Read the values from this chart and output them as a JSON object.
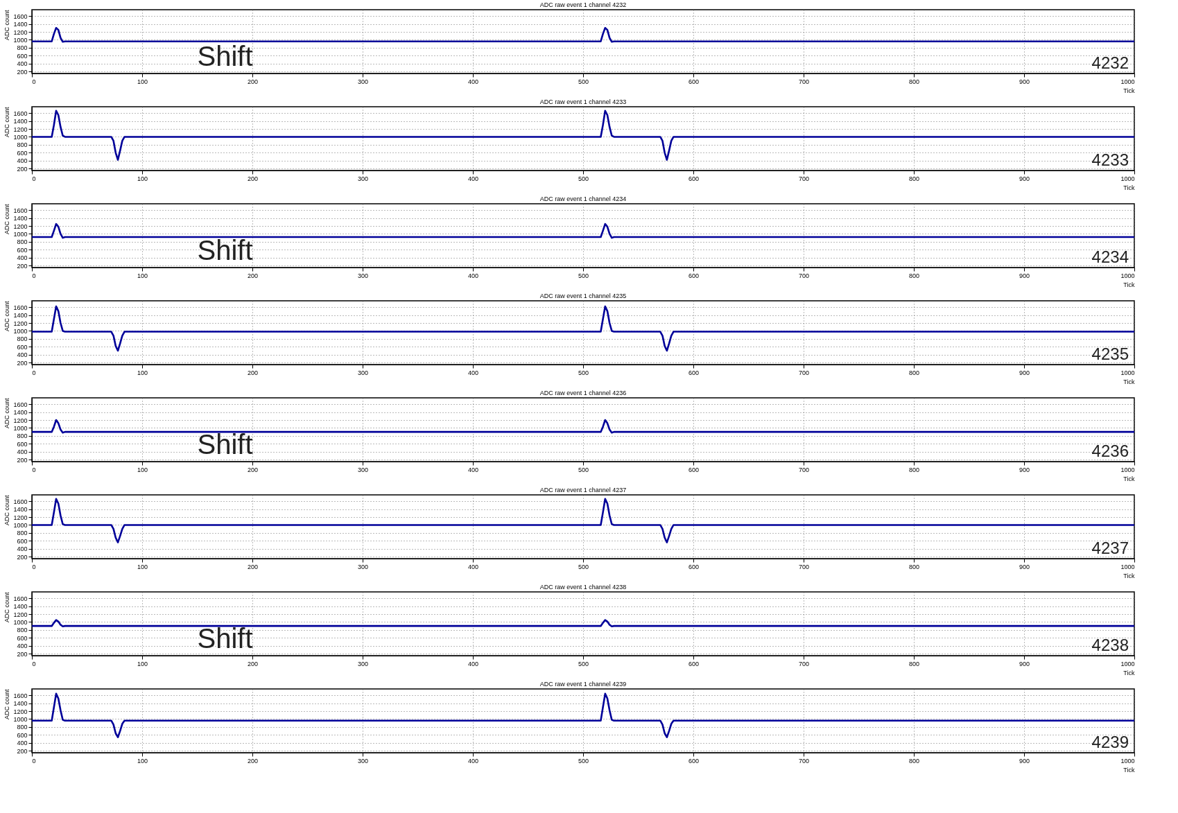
{
  "chart_data": [
    {
      "type": "line",
      "title": "ADC raw event 1 channel 4232",
      "xlabel": "Tick",
      "ylabel": "ADC count",
      "xlim": [
        0,
        1000
      ],
      "xticks": [
        0,
        100,
        200,
        300,
        400,
        500,
        600,
        700,
        800,
        900,
        1000
      ],
      "ylim": [
        150,
        1760
      ],
      "yticks": [
        200,
        400,
        600,
        800,
        1000,
        1200,
        1400,
        1600
      ],
      "grid": true,
      "line_style": "solid",
      "annotations": [
        "Shift",
        "4232"
      ],
      "series": [
        {
          "color": "#000099",
          "x": [
            0,
            18,
            20,
            22,
            24,
            26,
            28,
            30,
            72,
            74,
            76,
            78,
            80,
            82,
            84,
            516,
            518,
            520,
            522,
            524,
            526,
            528,
            570,
            572,
            574,
            576,
            578,
            580,
            582,
            1000
          ],
          "values": [
            960,
            960,
            1150,
            1300,
            1250,
            1050,
            950,
            960,
            960,
            960,
            960,
            960,
            960,
            960,
            960,
            960,
            1150,
            1300,
            1250,
            1050,
            950,
            960,
            960,
            960,
            960,
            960,
            960,
            960,
            960,
            960
          ]
        }
      ]
    },
    {
      "type": "line",
      "title": "ADC raw event 1 channel 4233",
      "xlabel": "Tick",
      "ylabel": "ADC count",
      "xlim": [
        0,
        1000
      ],
      "xticks": [
        0,
        100,
        200,
        300,
        400,
        500,
        600,
        700,
        800,
        900,
        1000
      ],
      "ylim": [
        150,
        1760
      ],
      "yticks": [
        200,
        400,
        600,
        800,
        1000,
        1200,
        1400,
        1600
      ],
      "grid": true,
      "line_style": "solid",
      "annotations": [
        "4233"
      ],
      "series": [
        {
          "color": "#000099",
          "x": [
            0,
            18,
            20,
            22,
            24,
            26,
            28,
            30,
            72,
            74,
            76,
            78,
            80,
            82,
            84,
            516,
            518,
            520,
            522,
            524,
            526,
            528,
            570,
            572,
            574,
            576,
            578,
            580,
            582,
            1000
          ],
          "values": [
            1000,
            1000,
            1300,
            1660,
            1550,
            1250,
            1030,
            1000,
            1000,
            900,
            600,
            420,
            650,
            900,
            1000,
            1000,
            1300,
            1660,
            1550,
            1250,
            1030,
            1000,
            1000,
            900,
            600,
            420,
            650,
            900,
            1000,
            1000
          ]
        }
      ]
    },
    {
      "type": "line",
      "title": "ADC raw event 1 channel 4234",
      "xlabel": "Tick",
      "ylabel": "ADC count",
      "xlim": [
        0,
        1000
      ],
      "xticks": [
        0,
        100,
        200,
        300,
        400,
        500,
        600,
        700,
        800,
        900,
        1000
      ],
      "ylim": [
        150,
        1760
      ],
      "yticks": [
        200,
        400,
        600,
        800,
        1000,
        1200,
        1400,
        1600
      ],
      "grid": true,
      "line_style": "solid",
      "annotations": [
        "Shift",
        "4234"
      ],
      "series": [
        {
          "color": "#000099",
          "x": [
            0,
            18,
            20,
            22,
            24,
            26,
            28,
            30,
            72,
            74,
            76,
            78,
            80,
            82,
            84,
            516,
            518,
            520,
            522,
            524,
            526,
            528,
            570,
            572,
            574,
            576,
            578,
            580,
            582,
            1000
          ],
          "values": [
            920,
            920,
            1080,
            1250,
            1180,
            1000,
            900,
            920,
            920,
            920,
            920,
            920,
            920,
            920,
            920,
            920,
            1080,
            1250,
            1180,
            1000,
            900,
            920,
            920,
            920,
            920,
            920,
            920,
            920,
            920,
            920
          ]
        }
      ]
    },
    {
      "type": "line",
      "title": "ADC raw event 1 channel 4235",
      "xlabel": "Tick",
      "ylabel": "ADC count",
      "xlim": [
        0,
        1000
      ],
      "xticks": [
        0,
        100,
        200,
        300,
        400,
        500,
        600,
        700,
        800,
        900,
        1000
      ],
      "ylim": [
        150,
        1760
      ],
      "yticks": [
        200,
        400,
        600,
        800,
        1000,
        1200,
        1400,
        1600
      ],
      "grid": true,
      "line_style": "solid",
      "annotations": [
        "4235"
      ],
      "series": [
        {
          "color": "#000099",
          "x": [
            0,
            18,
            20,
            22,
            24,
            26,
            28,
            30,
            72,
            74,
            76,
            78,
            80,
            82,
            84,
            516,
            518,
            520,
            522,
            524,
            526,
            528,
            570,
            572,
            574,
            576,
            578,
            580,
            582,
            1000
          ],
          "values": [
            980,
            980,
            1300,
            1620,
            1500,
            1200,
            1000,
            980,
            980,
            880,
            620,
            500,
            680,
            880,
            980,
            980,
            1300,
            1620,
            1500,
            1200,
            1000,
            980,
            980,
            880,
            620,
            500,
            680,
            880,
            980,
            980
          ]
        }
      ]
    },
    {
      "type": "line",
      "title": "ADC raw event 1 channel 4236",
      "xlabel": "Tick",
      "ylabel": "ADC count",
      "xlim": [
        0,
        1000
      ],
      "xticks": [
        0,
        100,
        200,
        300,
        400,
        500,
        600,
        700,
        800,
        900,
        1000
      ],
      "ylim": [
        150,
        1760
      ],
      "yticks": [
        200,
        400,
        600,
        800,
        1000,
        1200,
        1400,
        1600
      ],
      "grid": true,
      "line_style": "solid",
      "annotations": [
        "Shift",
        "4236"
      ],
      "series": [
        {
          "color": "#000099",
          "x": [
            0,
            18,
            20,
            22,
            24,
            26,
            28,
            30,
            72,
            74,
            76,
            78,
            80,
            82,
            84,
            516,
            518,
            520,
            522,
            524,
            526,
            528,
            570,
            572,
            574,
            576,
            578,
            580,
            582,
            1000
          ],
          "values": [
            900,
            900,
            1030,
            1200,
            1120,
            960,
            880,
            900,
            900,
            900,
            900,
            900,
            900,
            900,
            900,
            900,
            1030,
            1200,
            1120,
            960,
            880,
            900,
            900,
            900,
            900,
            900,
            900,
            900,
            900,
            900
          ]
        }
      ]
    },
    {
      "type": "line",
      "title": "ADC raw event 1 channel 4237",
      "xlabel": "Tick",
      "ylabel": "ADC count",
      "xlim": [
        0,
        1000
      ],
      "xticks": [
        0,
        100,
        200,
        300,
        400,
        500,
        600,
        700,
        800,
        900,
        1000
      ],
      "ylim": [
        150,
        1760
      ],
      "yticks": [
        200,
        400,
        600,
        800,
        1000,
        1200,
        1400,
        1600
      ],
      "grid": true,
      "line_style": "solid",
      "annotations": [
        "4237"
      ],
      "series": [
        {
          "color": "#000099",
          "x": [
            0,
            18,
            20,
            22,
            24,
            26,
            28,
            30,
            72,
            74,
            76,
            78,
            80,
            82,
            84,
            516,
            518,
            520,
            522,
            524,
            526,
            528,
            570,
            572,
            574,
            576,
            578,
            580,
            582,
            1000
          ],
          "values": [
            1000,
            1000,
            1320,
            1660,
            1540,
            1240,
            1020,
            1000,
            1000,
            900,
            680,
            560,
            720,
            900,
            1000,
            1000,
            1320,
            1660,
            1540,
            1240,
            1020,
            1000,
            1000,
            900,
            680,
            560,
            720,
            900,
            1000,
            1000
          ]
        }
      ]
    },
    {
      "type": "line",
      "title": "ADC raw event 1 channel 4238",
      "xlabel": "Tick",
      "ylabel": "ADC count",
      "xlim": [
        0,
        1000
      ],
      "xticks": [
        0,
        100,
        200,
        300,
        400,
        500,
        600,
        700,
        800,
        900,
        1000
      ],
      "ylim": [
        150,
        1760
      ],
      "yticks": [
        200,
        400,
        600,
        800,
        1000,
        1200,
        1400,
        1600
      ],
      "grid": true,
      "line_style": "solid",
      "annotations": [
        "Shift",
        "4238"
      ],
      "series": [
        {
          "color": "#000099",
          "x": [
            0,
            18,
            20,
            22,
            24,
            26,
            28,
            30,
            72,
            74,
            76,
            78,
            80,
            82,
            84,
            516,
            518,
            520,
            522,
            524,
            526,
            528,
            570,
            572,
            574,
            576,
            578,
            580,
            582,
            1000
          ],
          "values": [
            900,
            900,
            980,
            1050,
            1010,
            930,
            890,
            900,
            900,
            900,
            900,
            900,
            900,
            900,
            900,
            900,
            980,
            1050,
            1010,
            930,
            890,
            900,
            900,
            900,
            900,
            900,
            900,
            900,
            900,
            900
          ]
        }
      ]
    },
    {
      "type": "line",
      "title": "ADC raw event 1 channel 4239",
      "xlabel": "Tick",
      "ylabel": "ADC count",
      "xlim": [
        0,
        1000
      ],
      "xticks": [
        0,
        100,
        200,
        300,
        400,
        500,
        600,
        700,
        800,
        900,
        1000
      ],
      "ylim": [
        150,
        1760
      ],
      "yticks": [
        200,
        400,
        600,
        800,
        1000,
        1200,
        1400,
        1600
      ],
      "grid": true,
      "line_style": "solid",
      "annotations": [
        "4239"
      ],
      "series": [
        {
          "color": "#000099",
          "x": [
            0,
            18,
            20,
            22,
            24,
            26,
            28,
            30,
            72,
            74,
            76,
            78,
            80,
            82,
            84,
            516,
            518,
            520,
            522,
            524,
            526,
            528,
            570,
            572,
            574,
            576,
            578,
            580,
            582,
            1000
          ],
          "values": [
            960,
            960,
            1300,
            1640,
            1520,
            1220,
            980,
            960,
            960,
            860,
            640,
            540,
            700,
            880,
            960,
            960,
            1300,
            1640,
            1520,
            1220,
            980,
            960,
            960,
            860,
            640,
            540,
            700,
            880,
            960,
            960
          ]
        }
      ]
    }
  ]
}
